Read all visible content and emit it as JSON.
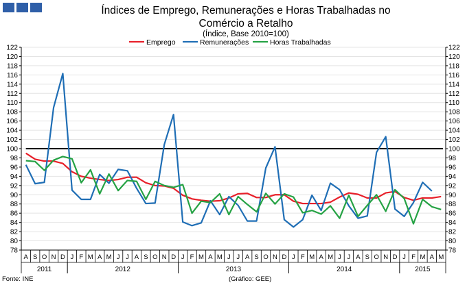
{
  "chart_data": {
    "type": "line",
    "title": "Índices de Emprego, Remunerações e Horas Trabalhadas no Comércio a Retalho",
    "subtitle": "(Índice, Base 2010=100)",
    "ylim": [
      78,
      122
    ],
    "yticks": [
      78,
      80,
      82,
      84,
      86,
      88,
      90,
      92,
      94,
      96,
      98,
      100,
      102,
      104,
      106,
      108,
      110,
      112,
      114,
      116,
      118,
      120,
      122
    ],
    "reference_value": 100,
    "categories": [
      "A",
      "S",
      "O",
      "N",
      "D",
      "J",
      "F",
      "M",
      "A",
      "M",
      "J",
      "J",
      "A",
      "S",
      "O",
      "N",
      "D",
      "J",
      "F",
      "M",
      "A",
      "M",
      "J",
      "J",
      "A",
      "S",
      "O",
      "N",
      "D",
      "J",
      "F",
      "M",
      "A",
      "M",
      "J",
      "J",
      "A",
      "S",
      "O",
      "N",
      "D",
      "J",
      "F",
      "M",
      "A",
      "M"
    ],
    "years": [
      {
        "label": "2011",
        "start": 0,
        "end": 4
      },
      {
        "label": "2012",
        "start": 5,
        "end": 16
      },
      {
        "label": "2013",
        "start": 17,
        "end": 28
      },
      {
        "label": "2014",
        "start": 29,
        "end": 40
      },
      {
        "label": "2015",
        "start": 41,
        "end": 45
      }
    ],
    "series": [
      {
        "name": "Emprego",
        "color": "#e8202a",
        "values": [
          99.0,
          97.7,
          97.3,
          97.3,
          96.8,
          95.0,
          94.0,
          93.6,
          93.3,
          93.1,
          93.3,
          93.8,
          93.8,
          92.6,
          92.0,
          91.9,
          91.4,
          89.9,
          89.1,
          88.8,
          88.6,
          88.7,
          89.3,
          90.2,
          90.3,
          89.4,
          89.4,
          90.0,
          90.0,
          88.6,
          88.1,
          88.1,
          88.1,
          88.4,
          89.5,
          90.4,
          90.1,
          89.3,
          89.3,
          90.4,
          90.7,
          89.4,
          88.8,
          89.3,
          89.3,
          89.6
        ]
      },
      {
        "name": "Remunerações",
        "color": "#1f6eb5",
        "values": [
          96.5,
          92.4,
          92.7,
          108.9,
          116.3,
          91.0,
          89.0,
          89.0,
          94.4,
          92.5,
          95.5,
          95.2,
          91.4,
          88.1,
          88.2,
          100.9,
          107.4,
          84.1,
          83.3,
          83.9,
          88.7,
          85.7,
          89.6,
          87.7,
          84.3,
          84.3,
          95.8,
          100.4,
          84.6,
          83.0,
          84.6,
          89.9,
          86.6,
          92.5,
          91.1,
          87.6,
          84.9,
          85.4,
          99.2,
          102.6,
          86.9,
          85.3,
          88.3,
          92.7,
          90.8,
          null
        ]
      },
      {
        "name": "Horas Trabalhadas",
        "color": "#25a244",
        "values": [
          97.4,
          97.2,
          95.3,
          97.5,
          98.3,
          97.8,
          92.6,
          95.4,
          90.2,
          94.5,
          90.9,
          93.1,
          92.9,
          89.0,
          92.9,
          92.0,
          91.6,
          92.2,
          86.0,
          88.6,
          88.3,
          90.2,
          85.7,
          89.6,
          87.9,
          86.3,
          90.3,
          88.0,
          90.2,
          89.5,
          86.1,
          86.6,
          85.8,
          87.6,
          84.9,
          89.9,
          85.3,
          87.7,
          90.0,
          86.4,
          91.1,
          89.2,
          83.7,
          89.0,
          87.4,
          86.8
        ]
      }
    ]
  },
  "footer": {
    "source": "Fonte: INE",
    "credit": "(Gráfico: GEE)"
  }
}
